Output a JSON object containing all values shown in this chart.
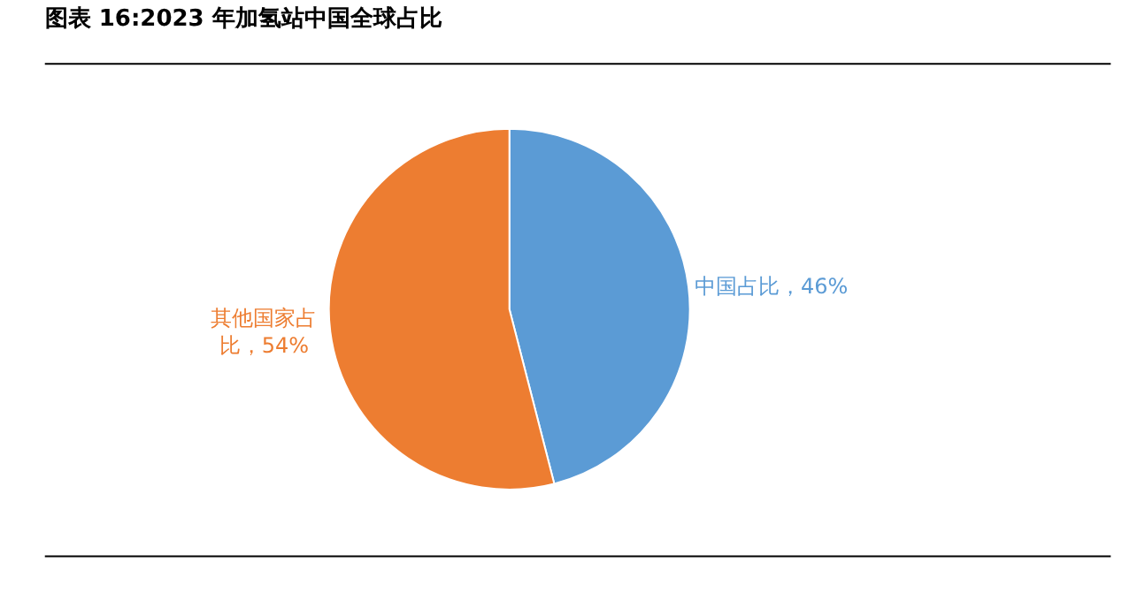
{
  "chart_data": {
    "type": "pie",
    "title": "图表 16:2023 年加氢站中国全球占比",
    "categories": [
      "中国占比",
      "其他国家占比"
    ],
    "value_labels": [
      "46%",
      "54%"
    ],
    "values": [
      46,
      54
    ],
    "colors": [
      "#5b9bd5",
      "#ed7d31"
    ],
    "legend": false
  }
}
